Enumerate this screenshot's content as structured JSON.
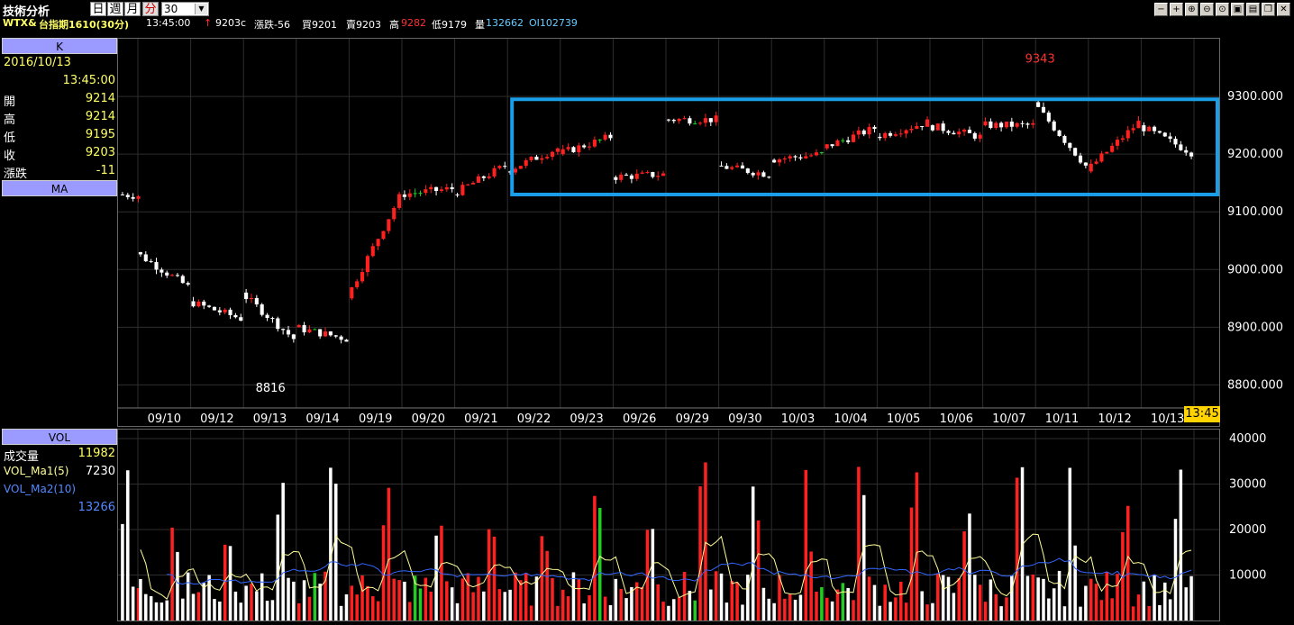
{
  "toolbar": {
    "title": "技術分析",
    "periods": [
      "日",
      "週",
      "月",
      "分"
    ],
    "active_period": "分",
    "interval": "30"
  },
  "quote": {
    "symbol": "WTX&",
    "name": "台指期1610(30分)",
    "time": "13:45:00",
    "arrow": "↑",
    "price": "9203c",
    "change": "漲跌-56",
    "bid": "買9201",
    "ask": "賣9203",
    "high_label": "高",
    "high": "9282",
    "low": "低9179",
    "volume_label": "量",
    "volume": "132662",
    "oi": "OI102739"
  },
  "k_panel": {
    "header": "K",
    "date": "2016/10/13",
    "time": "13:45:00",
    "rows": [
      {
        "label": "開",
        "value": "9214"
      },
      {
        "label": "高",
        "value": "9214"
      },
      {
        "label": "低",
        "value": "9195"
      },
      {
        "label": "收",
        "value": "9203"
      },
      {
        "label": "漲跌",
        "value": "-11"
      }
    ],
    "ma_header": "MA"
  },
  "vol_panel": {
    "header": "VOL",
    "rows": [
      {
        "label": "成交量",
        "value": "11982"
      },
      {
        "label": "VOL_Ma1(5)",
        "value": "7230"
      },
      {
        "label": "VOL_Ma2(10)",
        "value": ""
      }
    ],
    "ma2_value": "13266"
  },
  "time_badge": "13:45",
  "colors": {
    "up": "#ff2020",
    "down": "#ffffff",
    "flat": "#22cc22",
    "ma5": "#ffff99",
    "ma10": "#3366ff",
    "highlight_box": "#1a9ee8",
    "grid": "#2e2e2e",
    "axis_text": "#ffffff"
  },
  "chart_data": [
    {
      "type": "candlestick",
      "title": "",
      "x_labels": [
        "09/10",
        "09/12",
        "09/13",
        "09/14",
        "09/19",
        "09/20",
        "09/21",
        "09/22",
        "09/23",
        "09/26",
        "09/29",
        "09/30",
        "10/03",
        "10/04",
        "10/05",
        "10/06",
        "10/07",
        "10/11",
        "10/12",
        "10/13"
      ],
      "y_ticks": [
        "8800.000",
        "8900.000",
        "9000.000",
        "9100.000",
        "9200.000",
        "9300.000"
      ],
      "ylim": [
        8760,
        9400
      ],
      "annotations": [
        {
          "text": "9343",
          "value": 9343
        },
        {
          "text": "8816",
          "value": 8816
        }
      ],
      "highlight_box_range": {
        "from": "09/22",
        "to": "10/13",
        "low": 9130,
        "high": 9295
      },
      "daily_anchors": [
        {
          "day": "09/09",
          "open": 9130,
          "close": 9128
        },
        {
          "day": "09/10",
          "open": 9030,
          "close": 8970
        },
        {
          "day": "09/12",
          "open": 8945,
          "close": 8915
        },
        {
          "day": "09/13",
          "open": 8960,
          "close": 8880
        },
        {
          "day": "09/14",
          "open": 8900,
          "close": 8880
        },
        {
          "day": "09/19",
          "open": 8950,
          "close": 9125
        },
        {
          "day": "09/20",
          "open": 9130,
          "close": 9140
        },
        {
          "day": "09/21",
          "open": 9130,
          "close": 9180
        },
        {
          "day": "09/22",
          "open": 9170,
          "close": 9210
        },
        {
          "day": "09/23",
          "open": 9200,
          "close": 9230
        },
        {
          "day": "09/26",
          "open": 9160,
          "close": 9165
        },
        {
          "day": "09/29",
          "open": 9260,
          "close": 9260
        },
        {
          "day": "09/30",
          "open": 9180,
          "close": 9165
        },
        {
          "day": "10/03",
          "open": 9190,
          "close": 9200
        },
        {
          "day": "10/04",
          "open": 9210,
          "close": 9245
        },
        {
          "day": "10/05",
          "open": 9230,
          "close": 9255
        },
        {
          "day": "10/06",
          "open": 9250,
          "close": 9230
        },
        {
          "day": "10/07",
          "open": 9250,
          "close": 9250
        },
        {
          "day": "10/11",
          "open": 9290,
          "close": 9180
        },
        {
          "day": "10/12",
          "open": 9170,
          "close": 9255
        },
        {
          "day": "10/13",
          "open": 9250,
          "close": 9203
        }
      ]
    },
    {
      "type": "bar",
      "title": "VOL",
      "y_ticks": [
        "10000",
        "20000",
        "30000",
        "40000"
      ],
      "ylim": [
        0,
        40000
      ],
      "series": [
        {
          "name": "成交量",
          "value": 11982
        },
        {
          "name": "VOL_Ma1(5)",
          "value": 7230
        },
        {
          "name": "VOL_Ma2(10)",
          "value": 13266
        }
      ]
    }
  ]
}
